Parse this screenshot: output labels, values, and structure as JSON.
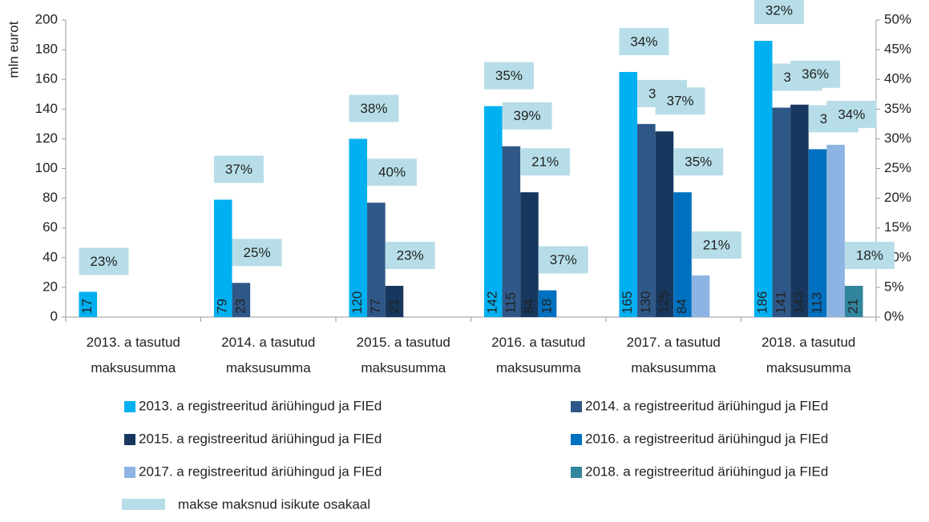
{
  "chart_data": {
    "type": "bar",
    "y_label": "mln eurot",
    "categories": [
      "2013. a tasutud\nmaksusumma",
      "2014. a  tasutud\nmaksusumma",
      "2015. a tasutud\nmaksusumma",
      "2016. a tasutud\nmaksusumma",
      "2017. a tasutud\nmaksusumma",
      "2018. a tasutud\nmaksusumma"
    ],
    "series": [
      {
        "name": "2013. a registreeritud äriühingud ja FIEd",
        "color": "#00b0f0",
        "show_labels": true,
        "values": [
          17,
          79,
          120,
          142,
          165,
          186
        ]
      },
      {
        "name": "2014. a registreeritud äriühingud ja FIEd",
        "color": "#2f5888",
        "show_labels": true,
        "values": [
          null,
          23,
          77,
          115,
          130,
          141
        ]
      },
      {
        "name": "2015. a registreeritud äriühingud ja FIEd",
        "color": "#17375e",
        "show_labels": true,
        "values": [
          null,
          null,
          21,
          84,
          125,
          143
        ]
      },
      {
        "name": "2016. a registreeritud äriühingud ja FIEd",
        "color": "#0070c0",
        "show_labels": true,
        "values": [
          null,
          null,
          null,
          18,
          84,
          113
        ]
      },
      {
        "name": "2017. a registreeritud äriühingud ja FIEd",
        "color": "#8db4e2",
        "show_labels": false,
        "values": [
          null,
          null,
          null,
          null,
          28,
          116
        ]
      },
      {
        "name": "2018. a registreeritud äriühingud ja FIEd",
        "color": "#31859c",
        "show_labels": true,
        "values": [
          null,
          null,
          null,
          null,
          null,
          21
        ]
      }
    ],
    "shares": {
      "name": "makse maksnud isikute osakaal",
      "color": "#b7dee8",
      "axis": "y2",
      "values": [
        [
          23,
          37,
          38,
          35,
          34,
          32
        ],
        [
          null,
          25,
          40,
          39,
          37,
          35
        ],
        [
          null,
          null,
          23,
          21,
          37,
          36
        ],
        [
          null,
          null,
          null,
          37,
          35,
          35
        ],
        [
          null,
          null,
          null,
          null,
          21,
          34
        ],
        [
          null,
          null,
          null,
          null,
          null,
          18
        ]
      ],
      "value_labels": [
        [
          "23%",
          "37%",
          "38%",
          "35%",
          "34%",
          "32%"
        ],
        [
          null,
          "25%",
          "40%",
          "39%",
          "37%",
          "35%"
        ],
        [
          null,
          null,
          "23%",
          "21%",
          "37%",
          "36%"
        ],
        [
          null,
          null,
          null,
          "37%",
          "35%",
          "35%"
        ],
        [
          null,
          null,
          null,
          null,
          "21%",
          "34%"
        ],
        [
          null,
          null,
          null,
          null,
          null,
          "18%"
        ]
      ]
    },
    "ylim": [
      0,
      200
    ],
    "yticks": [
      0,
      20,
      40,
      60,
      80,
      100,
      120,
      140,
      160,
      180,
      200
    ],
    "y2lim": [
      0,
      50
    ],
    "y2ticks": [
      {
        "value": 0,
        "label": "0%"
      },
      {
        "value": 5,
        "label": "5%"
      },
      {
        "value": 10,
        "label": "10%"
      },
      {
        "value": 15,
        "label": "15%"
      },
      {
        "value": 20,
        "label": "20%"
      },
      {
        "value": 25,
        "label": "25%"
      },
      {
        "value": 30,
        "label": "30%"
      },
      {
        "value": 35,
        "label": "35%"
      },
      {
        "value": 40,
        "label": "40%"
      },
      {
        "value": 45,
        "label": "45%"
      },
      {
        "value": 50,
        "label": "50%"
      }
    ],
    "grid": false,
    "legend": "bottom"
  }
}
